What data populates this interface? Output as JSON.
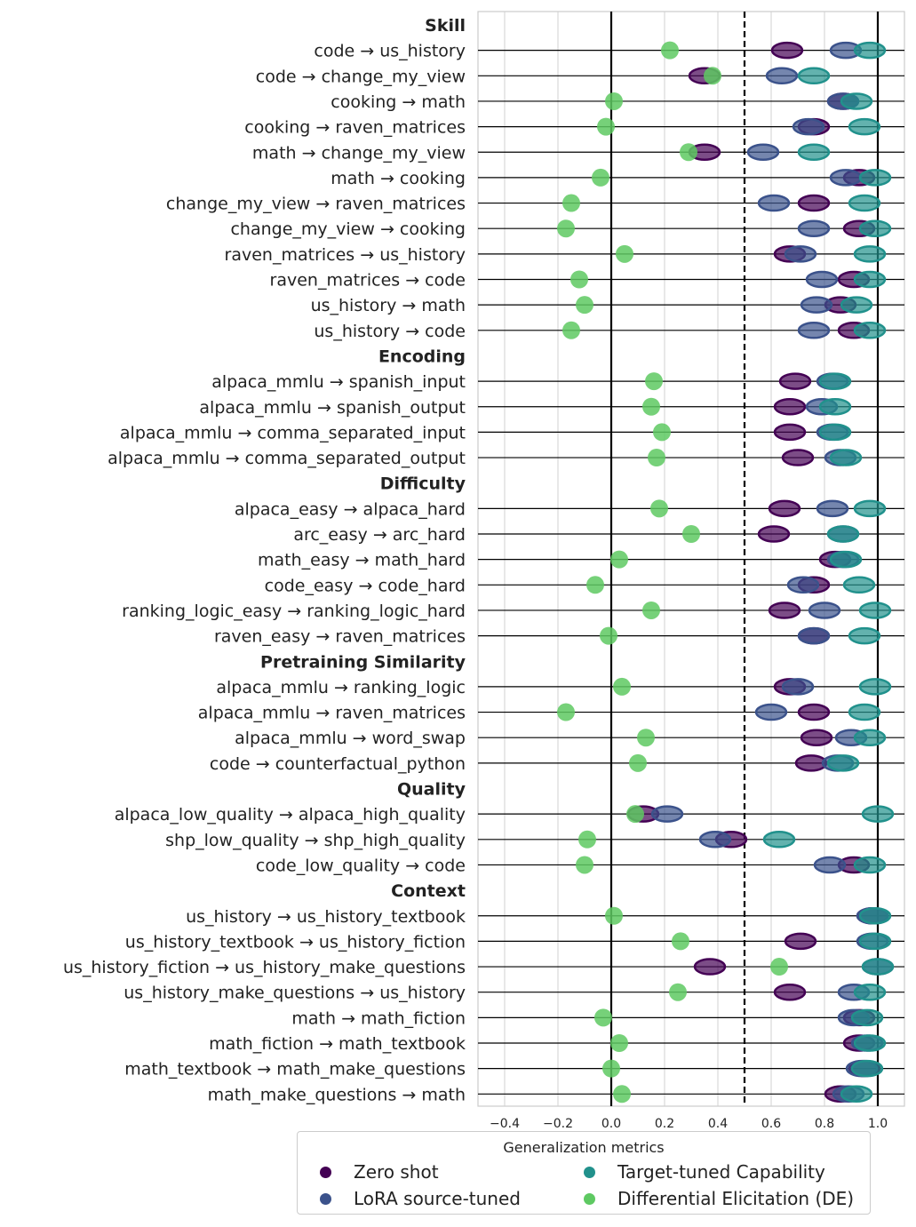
{
  "chart_data": {
    "type": "scatter",
    "xlabel": "",
    "xlim": [
      -0.5,
      1.1
    ],
    "xticks": [
      "−0.4",
      "−0.2",
      "0.0",
      "0.2",
      "0.4",
      "0.6",
      "0.8",
      "1.0"
    ],
    "xtick_values": [
      -0.4,
      -0.2,
      0.0,
      0.2,
      0.4,
      0.6,
      0.8,
      1.0
    ],
    "reference_lines": [
      {
        "x": 0.0,
        "style": "solid"
      },
      {
        "x": 0.5,
        "style": "dashed"
      },
      {
        "x": 1.0,
        "style": "solid"
      }
    ],
    "series_order": [
      "Zero shot",
      "LoRA source-tuned",
      "Target-tuned Capability",
      "Differential Elicitation (DE)"
    ],
    "colors": {
      "Zero shot": "#440154",
      "LoRA source-tuned": "#3b528b",
      "Target-tuned Capability": "#21918c",
      "Differential Elicitation (DE)": "#5ec962"
    },
    "groups": [
      {
        "name": "Skill",
        "rows": [
          {
            "label": "code → us_history",
            "values": [
              0.66,
              0.88,
              0.97,
              0.22
            ]
          },
          {
            "label": "code → change_my_view",
            "values": [
              0.35,
              0.64,
              0.76,
              0.38
            ]
          },
          {
            "label": "cooking → math",
            "values": [
              0.87,
              0.87,
              0.92,
              0.01
            ]
          },
          {
            "label": "cooking → raven_matrices",
            "values": [
              0.76,
              0.74,
              0.95,
              -0.02
            ]
          },
          {
            "label": "math → change_my_view",
            "values": [
              0.35,
              0.57,
              0.76,
              0.29
            ]
          },
          {
            "label": "math → cooking",
            "values": [
              0.93,
              0.88,
              0.99,
              -0.04
            ]
          },
          {
            "label": "change_my_view → raven_matrices",
            "values": [
              0.76,
              0.61,
              0.95,
              -0.15
            ]
          },
          {
            "label": "change_my_view → cooking",
            "values": [
              0.93,
              0.76,
              0.99,
              -0.17
            ]
          },
          {
            "label": "raven_matrices → us_history",
            "values": [
              0.67,
              0.71,
              0.97,
              0.05
            ]
          },
          {
            "label": "raven_matrices → code",
            "values": [
              0.91,
              0.79,
              0.97,
              -0.12
            ]
          },
          {
            "label": "us_history → math",
            "values": [
              0.86,
              0.77,
              0.92,
              -0.1
            ]
          },
          {
            "label": "us_history → code",
            "values": [
              0.91,
              0.76,
              0.97,
              -0.15
            ]
          }
        ]
      },
      {
        "name": "Encoding",
        "rows": [
          {
            "label": "alpaca_mmlu → spanish_input",
            "values": [
              0.69,
              0.83,
              0.84,
              0.16
            ]
          },
          {
            "label": "alpaca_mmlu → spanish_output",
            "values": [
              0.67,
              0.79,
              0.84,
              0.15
            ]
          },
          {
            "label": "alpaca_mmlu → comma_separated_input",
            "values": [
              0.67,
              0.83,
              0.84,
              0.19
            ]
          },
          {
            "label": "alpaca_mmlu → comma_separated_output",
            "values": [
              0.7,
              0.86,
              0.88,
              0.17
            ]
          }
        ]
      },
      {
        "name": "Difficulty",
        "rows": [
          {
            "label": "alpaca_easy → alpaca_hard",
            "values": [
              0.65,
              0.83,
              0.97,
              0.18
            ]
          },
          {
            "label": "arc_easy → arc_hard",
            "values": [
              0.61,
              0.87,
              0.87,
              0.3
            ]
          },
          {
            "label": "math_easy → math_hard",
            "values": [
              0.84,
              0.87,
              0.88,
              0.03
            ]
          },
          {
            "label": "code_easy → code_hard",
            "values": [
              0.76,
              0.72,
              0.93,
              -0.06
            ]
          },
          {
            "label": "ranking_logic_easy → ranking_logic_hard",
            "values": [
              0.65,
              0.8,
              0.99,
              0.15
            ]
          },
          {
            "label": "raven_easy → raven_matrices",
            "values": [
              0.76,
              0.76,
              0.95,
              -0.01
            ]
          }
        ]
      },
      {
        "name": "Pretraining Similarity",
        "rows": [
          {
            "label": "alpaca_mmlu → ranking_logic",
            "values": [
              0.67,
              0.7,
              0.99,
              0.04
            ]
          },
          {
            "label": "alpaca_mmlu → raven_matrices",
            "values": [
              0.76,
              0.6,
              0.95,
              -0.17
            ]
          },
          {
            "label": "alpaca_mmlu → word_swap",
            "values": [
              0.77,
              0.9,
              0.97,
              0.13
            ]
          },
          {
            "label": "code → counterfactual_python",
            "values": [
              0.75,
              0.85,
              0.87,
              0.1
            ]
          }
        ]
      },
      {
        "name": "Quality",
        "rows": [
          {
            "label": "alpaca_low_quality → alpaca_high_quality",
            "values": [
              0.12,
              0.21,
              1.0,
              0.09
            ]
          },
          {
            "label": "shp_low_quality → shp_high_quality",
            "values": [
              0.45,
              0.39,
              0.63,
              -0.09
            ]
          },
          {
            "label": "code_low_quality → code",
            "values": [
              0.91,
              0.82,
              0.97,
              -0.1
            ]
          }
        ]
      },
      {
        "name": "Context",
        "rows": [
          {
            "label": "us_history → us_history_textbook",
            "values": [
              0.98,
              0.98,
              0.99,
              0.01
            ]
          },
          {
            "label": "us_history_textbook → us_history_fiction",
            "values": [
              0.71,
              0.98,
              0.99,
              0.26
            ]
          },
          {
            "label": "us_history_fiction → us_history_make_questions",
            "values": [
              0.37,
              1.0,
              1.0,
              0.63
            ]
          },
          {
            "label": "us_history_make_questions → us_history",
            "values": [
              0.67,
              0.91,
              0.97,
              0.25
            ]
          },
          {
            "label": "math → math_fiction",
            "values": [
              0.93,
              0.91,
              0.96,
              -0.03
            ]
          },
          {
            "label": "math_fiction → math_textbook",
            "values": [
              0.93,
              0.96,
              0.97,
              0.03
            ]
          },
          {
            "label": "math_textbook → math_make_questions",
            "values": [
              0.95,
              0.94,
              0.96,
              0.0
            ]
          },
          {
            "label": "math_make_questions → math",
            "values": [
              0.86,
              0.89,
              0.92,
              0.04
            ]
          }
        ]
      }
    ]
  },
  "legend": {
    "title": "Generalization metrics",
    "items": [
      {
        "label": "Zero shot",
        "color": "#440154"
      },
      {
        "label": "LoRA source-tuned",
        "color": "#3b528b"
      },
      {
        "label": "Target-tuned Capability",
        "color": "#21918c"
      },
      {
        "label": "Differential Elicitation (DE)",
        "color": "#5ec962"
      }
    ]
  }
}
